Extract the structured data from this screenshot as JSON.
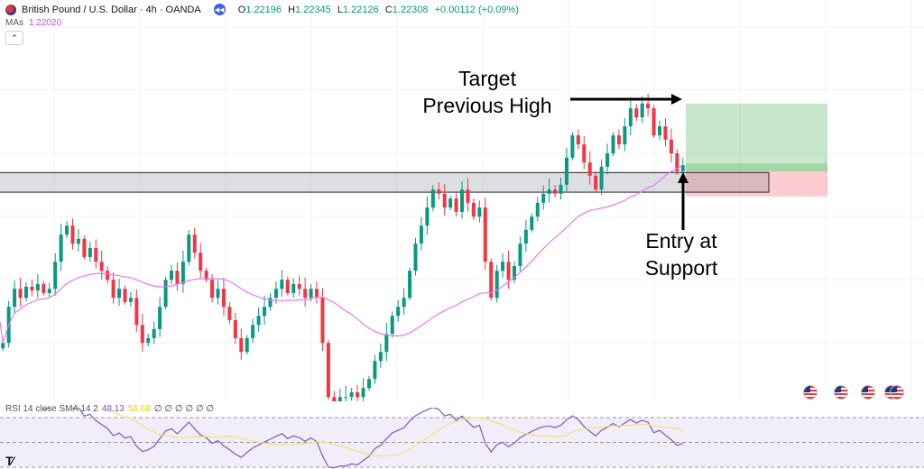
{
  "header": {
    "symbol": "British Pound / U.S. Dollar · 4h · OANDA",
    "o_label": "O",
    "o": "1.22196",
    "h_label": "H",
    "h": "1.22345",
    "l_label": "L",
    "l": "1.22126",
    "c_label": "C",
    "c": "1.22308",
    "change": "+0.00112 (+0.09%)"
  },
  "ma": {
    "label": "MAs",
    "value": "1.22020"
  },
  "rsi": {
    "label": "RSI 14 close SMA 14 2",
    "value": "48.13",
    "sma_value": "56.68",
    "extra": "∅ ∅ ∅ ∅ ∅ ∅"
  },
  "annotations": {
    "target_line1": "Target",
    "target_line2": "Previous High",
    "entry_line1": "Entry at",
    "entry_line2": "Support"
  },
  "logo": "TV",
  "colors": {
    "up": "#089981",
    "down": "#f23645",
    "ma": "#e879f9",
    "rsi": "#7e57c2",
    "rsi_sma": "#f3e27a"
  },
  "chart_data": {
    "type": "candlestick",
    "symbol": "GBPUSD",
    "interval": "4h",
    "ylim": [
      1.1786,
      1.2542
    ],
    "close": [
      1.1896,
      1.1964,
      1.1998,
      1.1981,
      1.2002,
      1.1995,
      1.2007,
      1.199,
      1.1998,
      1.2049,
      1.21,
      1.2117,
      1.2083,
      1.2092,
      1.2058,
      1.2075,
      1.2049,
      1.2032,
      1.2015,
      1.1981,
      1.1998,
      1.1973,
      1.1981,
      1.193,
      1.1896,
      1.1905,
      1.1922,
      1.1964,
      1.2015,
      1.2032,
      1.2007,
      1.2049,
      1.21,
      1.2066,
      1.2032,
      1.2015,
      1.1981,
      1.1998,
      1.1964,
      1.1939,
      1.1905,
      1.1879,
      1.1905,
      1.193,
      1.1947,
      1.1964,
      1.1981,
      1.1998,
      1.2015,
      1.199,
      1.2007,
      1.1998,
      1.1981,
      1.1998,
      1.1981,
      1.1896,
      1.1794,
      1.1786,
      1.1794,
      1.1794,
      1.1803,
      1.1794,
      1.1811,
      1.1828,
      1.1862,
      1.1879,
      1.1913,
      1.1947,
      1.1964,
      1.1981,
      1.2032,
      1.2083,
      1.2117,
      1.2151,
      1.2185,
      1.2177,
      1.2151,
      1.2168,
      1.2143,
      1.2185,
      1.216,
      1.2134,
      1.2151,
      1.2049,
      1.1981,
      1.2032,
      1.2049,
      1.2015,
      1.2041,
      1.2083,
      1.2109,
      1.2134,
      1.216,
      1.2177,
      1.2185,
      1.2177,
      1.2194,
      1.2245,
      1.2287,
      1.227,
      1.2236,
      1.2211,
      1.2185,
      1.2228,
      1.2253,
      1.2287,
      1.227,
      1.2304,
      1.2338,
      1.2321,
      1.2347,
      1.2338,
      1.2287,
      1.2304,
      1.2279,
      1.2253,
      1.2219,
      1.2231
    ],
    "ma_period": 30,
    "support_zone": [
      1.218,
      1.2217
    ],
    "position": {
      "type": "long",
      "entry": 1.2219,
      "target": 1.2347,
      "stop": 1.2172
    },
    "rsi_period": 14,
    "rsi_sma_period": 14,
    "rsi_levels": [
      70,
      50,
      30
    ]
  }
}
